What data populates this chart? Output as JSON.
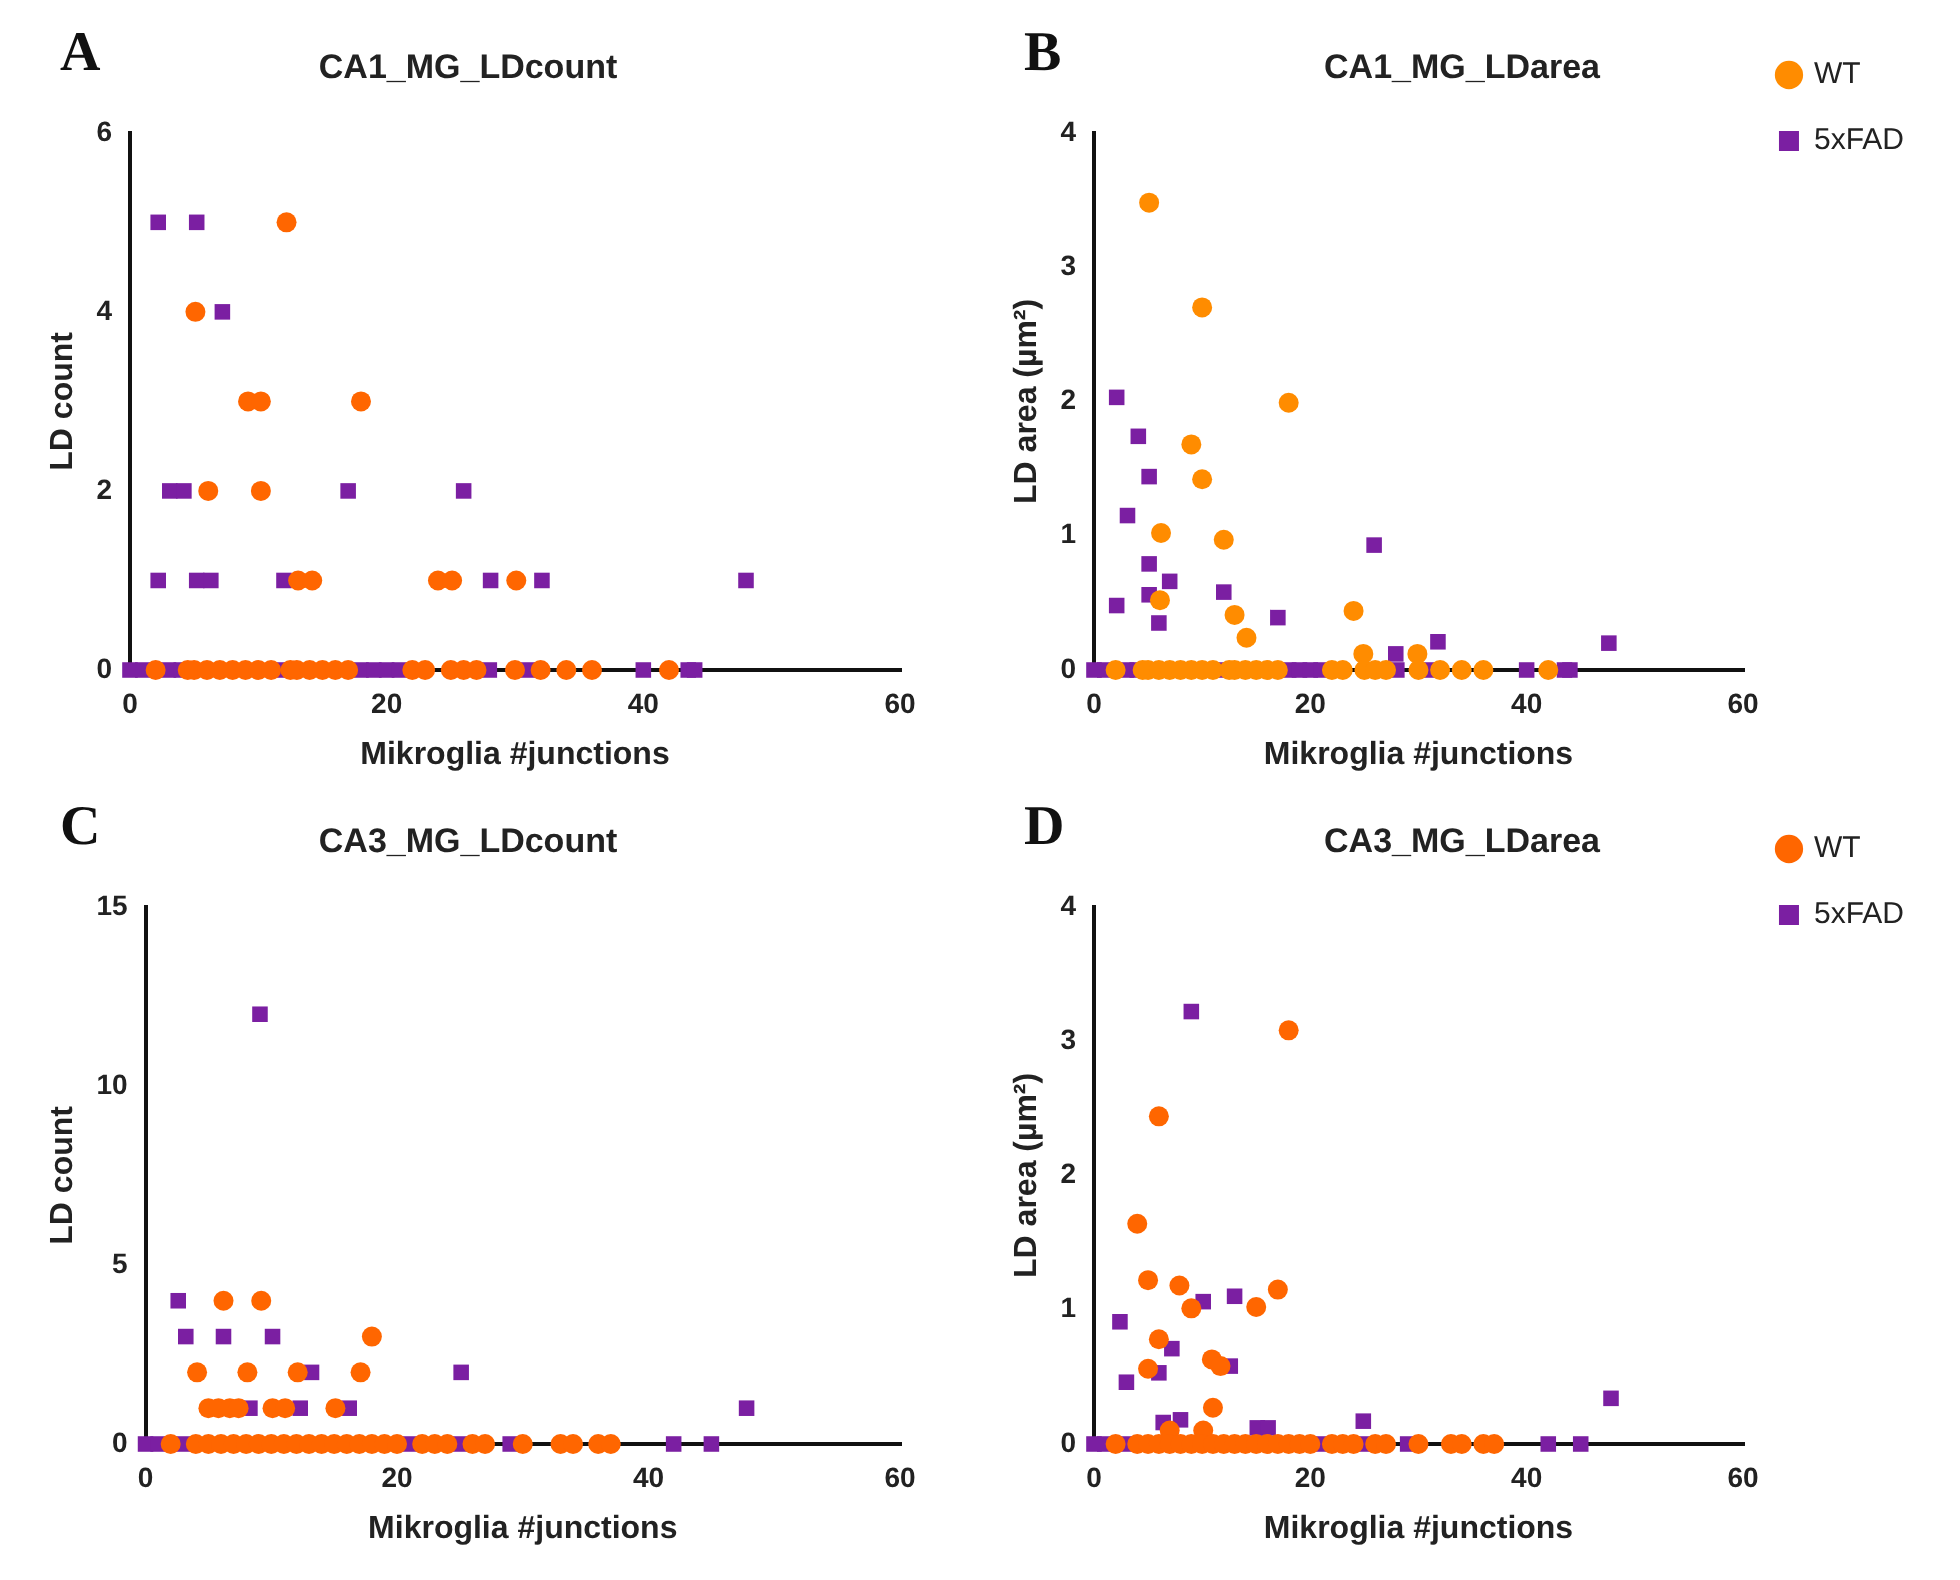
{
  "chart_data": [
    {
      "type": "scatter",
      "title": "CA1_MG_LDcount",
      "annotations": [
        "A"
      ],
      "xlabel": "Mikroglia #junctions",
      "ylabel": "LD count",
      "xlim": [
        0,
        60
      ],
      "xticks": [
        0,
        20,
        40,
        60
      ],
      "ylim": [
        0,
        6
      ],
      "yticks": [
        0,
        2,
        4,
        6
      ],
      "series": [
        {
          "color": "#ff6600",
          "marker": "circle",
          "x": [
            12.2,
            5.1,
            9.2,
            10.2,
            18,
            6.1,
            10.2,
            13.1,
            14.2,
            24,
            25.1,
            30.1,
            2,
            4.5,
            5,
            6,
            7,
            8,
            9,
            10,
            11,
            12.5,
            13,
            14,
            15,
            16,
            17,
            22,
            23,
            25,
            26,
            27,
            30,
            32,
            34,
            36,
            42
          ],
          "values": [
            5,
            4,
            3,
            3,
            3,
            2,
            2,
            1,
            1,
            1,
            1,
            1,
            0,
            0,
            0,
            0,
            0,
            0,
            0,
            0,
            0,
            0,
            0,
            0,
            0,
            0,
            0,
            0,
            0,
            0,
            0,
            0,
            0,
            0,
            0,
            0,
            0
          ]
        },
        {
          "color": "#7b1fa2",
          "marker": "square",
          "x": [
            2.2,
            5.2,
            7.2,
            3.1,
            4.2,
            17,
            26,
            2.2,
            5.2,
            6.3,
            12,
            28.1,
            32.1,
            48,
            0,
            1,
            3,
            4,
            12,
            18,
            19,
            20,
            21,
            28,
            31,
            40,
            43.5,
            44
          ],
          "values": [
            5,
            5,
            4,
            2,
            2,
            2,
            2,
            1,
            1,
            1,
            1,
            1,
            1,
            1,
            0,
            0,
            0,
            0,
            0,
            0,
            0,
            0,
            0,
            0,
            0,
            0,
            0,
            0
          ]
        }
      ]
    },
    {
      "type": "scatter",
      "title": "CA1_MG_LDarea",
      "annotations": [
        "B"
      ],
      "xlabel": "Mikroglia #junctions",
      "ylabel": "LD area (µm²)",
      "xlim": [
        0,
        60
      ],
      "xticks": [
        0,
        20,
        40,
        60
      ],
      "ylim": [
        0,
        4
      ],
      "yticks": [
        0,
        1,
        2,
        3,
        4
      ],
      "legend": "top right",
      "series": [
        {
          "name": "WT",
          "color": "#ff8c00",
          "marker": "circle",
          "x": [
            5.1,
            10,
            18,
            9,
            10,
            6.2,
            12,
            6.1,
            13,
            14.1,
            24,
            24.9,
            29.9,
            2,
            4.5,
            5,
            6,
            7,
            8,
            9,
            10,
            11,
            12.5,
            13,
            14,
            15,
            16,
            17,
            22,
            23,
            25,
            26,
            27,
            30,
            32,
            34,
            36,
            42
          ],
          "values": [
            3.48,
            2.7,
            1.99,
            1.68,
            1.42,
            1.02,
            0.97,
            0.52,
            0.41,
            0.24,
            0.44,
            0.12,
            0.12,
            0,
            0,
            0,
            0,
            0,
            0,
            0,
            0,
            0,
            0,
            0,
            0,
            0,
            0,
            0,
            0,
            0,
            0,
            0,
            0,
            0,
            0,
            0,
            0,
            0
          ]
        },
        {
          "name": "5xFAD",
          "color": "#7b1fa2",
          "marker": "square",
          "x": [
            2.1,
            4.1,
            5.1,
            3.1,
            5.1,
            5.1,
            7,
            6,
            2.1,
            12,
            17,
            25.9,
            27.9,
            31.8,
            47.6,
            0,
            1,
            3,
            4,
            12,
            18,
            19,
            20,
            21,
            28,
            31,
            40,
            43.5,
            44
          ],
          "values": [
            2.03,
            1.74,
            1.44,
            1.15,
            0.79,
            0.56,
            0.66,
            0.35,
            0.48,
            0.58,
            0.39,
            0.93,
            0.12,
            0.21,
            0.2,
            0,
            0,
            0,
            0,
            0,
            0,
            0,
            0,
            0,
            0,
            0,
            0,
            0,
            0
          ]
        }
      ]
    },
    {
      "type": "scatter",
      "title": "CA3_MG_LDcount",
      "annotations": [
        "C"
      ],
      "xlabel": "Mikroglia #junctions",
      "ylabel": "LD count",
      "xlim": [
        0,
        60
      ],
      "xticks": [
        0,
        20,
        40,
        60
      ],
      "ylim": [
        0,
        15
      ],
      "yticks": [
        0,
        5,
        10,
        15
      ],
      "series": [
        {
          "color": "#ff6600",
          "marker": "circle",
          "x": [
            6.2,
            9.2,
            18,
            4.1,
            8.1,
            12.1,
            17.1,
            5,
            5.8,
            6.7,
            7.4,
            10.1,
            11.1,
            15.1,
            2,
            4,
            5,
            6,
            7,
            8,
            9,
            10,
            11,
            12,
            13,
            14,
            15,
            16,
            17,
            18,
            19,
            20,
            22,
            23,
            24,
            26,
            27,
            30,
            33,
            34,
            36,
            37
          ],
          "values": [
            4,
            4,
            3,
            2,
            2,
            2,
            2,
            1,
            1,
            1,
            1,
            1,
            1,
            1,
            0,
            0,
            0,
            0,
            0,
            0,
            0,
            0,
            0,
            0,
            0,
            0,
            0,
            0,
            0,
            0,
            0,
            0,
            0,
            0,
            0,
            0,
            0,
            0,
            0,
            0,
            0,
            0
          ]
        },
        {
          "color": "#7b1fa2",
          "marker": "square",
          "x": [
            9.1,
            2.6,
            3.2,
            6.2,
            10.1,
            13.2,
            25.1,
            8.3,
            12.3,
            16.2,
            47.8,
            0,
            1,
            3,
            21,
            25,
            29,
            42,
            45
          ],
          "values": [
            12,
            4,
            3,
            3,
            3,
            2,
            2,
            1,
            1,
            1,
            1,
            0,
            0,
            0,
            0,
            0,
            0,
            0,
            0
          ]
        }
      ]
    },
    {
      "type": "scatter",
      "title": "CA3_MG_LDarea",
      "annotations": [
        "D"
      ],
      "xlabel": "Mikroglia #junctions",
      "ylabel": "LD area (µm²)",
      "xlim": [
        0,
        60
      ],
      "xticks": [
        0,
        20,
        40,
        60
      ],
      "ylim": [
        0,
        4
      ],
      "yticks": [
        0,
        1,
        2,
        3,
        4
      ],
      "legend": "top right",
      "series": [
        {
          "name": "WT",
          "color": "#ff6600",
          "marker": "circle",
          "x": [
            18,
            6,
            4,
            5,
            7.9,
            9,
            15,
            17,
            6,
            5,
            10.9,
            11.7,
            11,
            7,
            10.1,
            2,
            4,
            5,
            6,
            7,
            8,
            9,
            10,
            11,
            12,
            13,
            14,
            15,
            16,
            17,
            18,
            19,
            20,
            22,
            23,
            24,
            26,
            27,
            30,
            33,
            34,
            36,
            37
          ],
          "values": [
            3.08,
            2.44,
            1.64,
            1.22,
            1.18,
            1.01,
            1.02,
            1.15,
            0.78,
            0.56,
            0.63,
            0.58,
            0.27,
            0.1,
            0.1,
            0,
            0,
            0,
            0,
            0,
            0,
            0,
            0,
            0,
            0,
            0,
            0,
            0,
            0,
            0,
            0,
            0,
            0,
            0,
            0,
            0,
            0,
            0,
            0,
            0,
            0,
            0,
            0
          ]
        },
        {
          "name": "5xFAD",
          "color": "#7b1fa2",
          "marker": "square",
          "x": [
            9,
            2.4,
            10.1,
            13,
            3,
            7.2,
            6,
            12.6,
            6.4,
            8,
            15.1,
            16.1,
            24.9,
            47.8,
            0,
            1,
            3,
            21,
            25,
            29,
            42,
            45
          ],
          "values": [
            3.22,
            0.91,
            1.06,
            1.1,
            0.46,
            0.71,
            0.53,
            0.58,
            0.16,
            0.18,
            0.12,
            0.12,
            0.17,
            0.34,
            0,
            0,
            0,
            0,
            0,
            0,
            0,
            0
          ]
        }
      ]
    }
  ]
}
